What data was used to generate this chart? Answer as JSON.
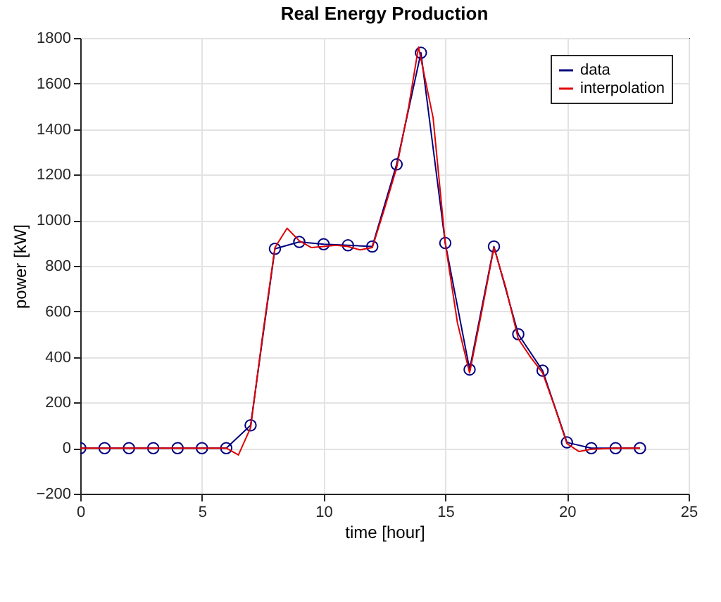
{
  "chart_data": {
    "type": "line",
    "title": "Real Energy Production",
    "xlabel": "time [hour]",
    "ylabel": "power [kW]",
    "xlim": [
      0,
      25
    ],
    "xticks": [
      0,
      5,
      10,
      15,
      20,
      25
    ],
    "ylim": [
      -200,
      1800
    ],
    "yticks": [
      -200,
      0,
      200,
      400,
      600,
      800,
      1000,
      1200,
      1400,
      1600,
      1800
    ],
    "grid": true,
    "legend": "top right",
    "series": [
      {
        "name": "data",
        "color": "#00007f",
        "marker": "circle",
        "x": [
          0,
          1,
          2,
          3,
          4,
          5,
          6,
          7,
          8,
          9,
          10,
          11,
          12,
          13,
          14,
          15,
          16,
          17,
          18,
          19,
          20,
          21,
          22,
          23
        ],
        "values": [
          0,
          0,
          0,
          0,
          0,
          0,
          0,
          100,
          875,
          905,
          895,
          890,
          885,
          1245,
          1735,
          900,
          345,
          885,
          500,
          340,
          25,
          0,
          0,
          0
        ]
      },
      {
        "name": "interpolation",
        "color": "#e00000",
        "marker": "none",
        "x": [
          0,
          1,
          2,
          3,
          4,
          5,
          6,
          6.5,
          7,
          7.5,
          8,
          8.5,
          9,
          9.5,
          10,
          10.5,
          11,
          11.5,
          12,
          12.5,
          13,
          13.5,
          13.9,
          14.5,
          15,
          15.5,
          16,
          16.5,
          17,
          17.5,
          18,
          18.5,
          19,
          19.5,
          20,
          20.5,
          21,
          22,
          23
        ],
        "values": [
          0,
          0,
          0,
          0,
          0,
          0,
          0,
          -30,
          90,
          500,
          880,
          965,
          910,
          880,
          885,
          890,
          885,
          870,
          880,
          1050,
          1230,
          1500,
          1760,
          1450,
          900,
          550,
          330,
          600,
          880,
          700,
          480,
          400,
          330,
          180,
          20,
          -15,
          -5,
          0,
          0
        ]
      }
    ]
  }
}
